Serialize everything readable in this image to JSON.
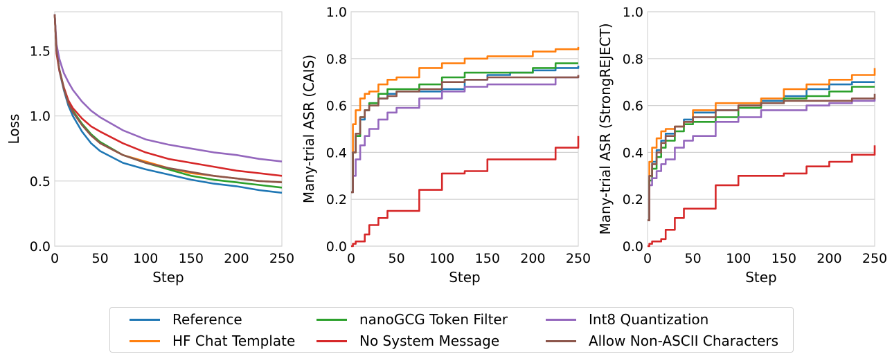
{
  "colors": {
    "Reference": "#1f77b4",
    "HF Chat Template": "#ff7f0e",
    "nanoGCG Token Filter": "#2ca02c",
    "No System Message": "#d62728",
    "Int8 Quantization": "#9467bd",
    "Allow Non-ASCII Characters": "#8c564b"
  },
  "legend": {
    "items": [
      {
        "label": "Reference",
        "color": "#1f77b4"
      },
      {
        "label": "HF Chat Template",
        "color": "#ff7f0e"
      },
      {
        "label": "nanoGCG Token Filter",
        "color": "#2ca02c"
      },
      {
        "label": "No System Message",
        "color": "#d62728"
      },
      {
        "label": "Int8 Quantization",
        "color": "#9467bd"
      },
      {
        "label": "Allow Non-ASCII Characters",
        "color": "#8c564b"
      }
    ]
  },
  "chart_data": [
    {
      "type": "line",
      "xlabel": "Step",
      "ylabel": "Loss",
      "xlim": [
        0,
        250
      ],
      "ylim": [
        0,
        1.8
      ],
      "xticks": [
        0,
        50,
        100,
        150,
        200,
        250
      ],
      "yticks": [
        0.0,
        0.5,
        1.0,
        1.5
      ],
      "ytick_labels": [
        "0.0",
        "0.5",
        "1.0",
        "1.5"
      ],
      "grid": "horizontal",
      "step_lines": false,
      "series": [
        {
          "name": "Reference",
          "x": [
            0,
            2,
            5,
            10,
            15,
            20,
            30,
            40,
            50,
            75,
            100,
            125,
            150,
            175,
            200,
            225,
            250
          ],
          "y": [
            1.78,
            1.5,
            1.35,
            1.2,
            1.08,
            1.0,
            0.88,
            0.79,
            0.73,
            0.64,
            0.59,
            0.55,
            0.51,
            0.48,
            0.46,
            0.43,
            0.41
          ]
        },
        {
          "name": "HF Chat Template",
          "x": [
            0,
            2,
            5,
            10,
            15,
            20,
            30,
            40,
            50,
            75,
            100,
            125,
            150,
            175,
            200,
            225,
            250
          ],
          "y": [
            1.78,
            1.5,
            1.36,
            1.21,
            1.1,
            1.03,
            0.93,
            0.85,
            0.79,
            0.7,
            0.65,
            0.6,
            0.56,
            0.54,
            0.52,
            0.5,
            0.49
          ]
        },
        {
          "name": "nanoGCG Token Filter",
          "x": [
            0,
            2,
            5,
            10,
            15,
            20,
            30,
            40,
            50,
            75,
            100,
            125,
            150,
            175,
            200,
            225,
            250
          ],
          "y": [
            1.78,
            1.5,
            1.36,
            1.22,
            1.11,
            1.04,
            0.94,
            0.86,
            0.8,
            0.7,
            0.64,
            0.59,
            0.54,
            0.51,
            0.49,
            0.47,
            0.45
          ]
        },
        {
          "name": "No System Message",
          "x": [
            0,
            2,
            5,
            10,
            15,
            20,
            30,
            40,
            50,
            75,
            100,
            125,
            150,
            175,
            200,
            225,
            250
          ],
          "y": [
            1.78,
            1.48,
            1.35,
            1.22,
            1.12,
            1.06,
            0.98,
            0.92,
            0.88,
            0.79,
            0.72,
            0.67,
            0.64,
            0.61,
            0.58,
            0.56,
            0.54
          ]
        },
        {
          "name": "Int8 Quantization",
          "x": [
            0,
            2,
            5,
            10,
            15,
            20,
            30,
            40,
            50,
            75,
            100,
            125,
            150,
            175,
            200,
            225,
            250
          ],
          "y": [
            1.78,
            1.55,
            1.44,
            1.33,
            1.26,
            1.2,
            1.11,
            1.04,
            0.99,
            0.89,
            0.82,
            0.78,
            0.75,
            0.72,
            0.7,
            0.67,
            0.65
          ]
        },
        {
          "name": "Allow Non-ASCII Characters",
          "x": [
            0,
            2,
            5,
            10,
            15,
            20,
            30,
            40,
            50,
            75,
            100,
            125,
            150,
            175,
            200,
            225,
            250
          ],
          "y": [
            1.78,
            1.5,
            1.36,
            1.21,
            1.1,
            1.03,
            0.93,
            0.85,
            0.79,
            0.7,
            0.64,
            0.6,
            0.57,
            0.54,
            0.52,
            0.5,
            0.49
          ]
        }
      ]
    },
    {
      "type": "line",
      "xlabel": "Step",
      "ylabel": "Many-trial ASR (CAIS)",
      "xlim": [
        0,
        250
      ],
      "ylim": [
        0,
        1.0
      ],
      "xticks": [
        0,
        50,
        100,
        150,
        200,
        250
      ],
      "yticks": [
        0.0,
        0.2,
        0.4,
        0.6,
        0.8,
        1.0
      ],
      "ytick_labels": [
        "0.0",
        "0.2",
        "0.4",
        "0.6",
        "0.8",
        "1.0"
      ],
      "grid": "horizontal",
      "step_lines": true,
      "series": [
        {
          "name": "Reference",
          "x": [
            0,
            2,
            5,
            10,
            15,
            20,
            30,
            40,
            50,
            75,
            100,
            125,
            150,
            175,
            200,
            225,
            250
          ],
          "y": [
            0.23,
            0.4,
            0.47,
            0.54,
            0.58,
            0.61,
            0.63,
            0.65,
            0.66,
            0.66,
            0.67,
            0.71,
            0.73,
            0.74,
            0.75,
            0.76,
            0.77
          ]
        },
        {
          "name": "HF Chat Template",
          "x": [
            0,
            2,
            5,
            10,
            15,
            20,
            30,
            40,
            50,
            75,
            100,
            125,
            150,
            175,
            200,
            225,
            250
          ],
          "y": [
            0.23,
            0.52,
            0.58,
            0.63,
            0.65,
            0.66,
            0.69,
            0.71,
            0.72,
            0.76,
            0.78,
            0.8,
            0.81,
            0.81,
            0.83,
            0.84,
            0.85
          ]
        },
        {
          "name": "nanoGCG Token Filter",
          "x": [
            0,
            2,
            5,
            10,
            15,
            20,
            30,
            40,
            50,
            75,
            100,
            125,
            150,
            175,
            200,
            225,
            250
          ],
          "y": [
            0.23,
            0.4,
            0.47,
            0.55,
            0.58,
            0.61,
            0.65,
            0.67,
            0.67,
            0.69,
            0.72,
            0.74,
            0.74,
            0.74,
            0.76,
            0.78,
            0.78
          ]
        },
        {
          "name": "No System Message",
          "x": [
            0,
            2,
            5,
            10,
            15,
            20,
            30,
            40,
            50,
            75,
            100,
            125,
            150,
            175,
            200,
            225,
            250
          ],
          "y": [
            0.0,
            0.01,
            0.02,
            0.02,
            0.05,
            0.09,
            0.12,
            0.15,
            0.15,
            0.24,
            0.31,
            0.32,
            0.37,
            0.37,
            0.37,
            0.42,
            0.47
          ]
        },
        {
          "name": "Int8 Quantization",
          "x": [
            0,
            2,
            5,
            10,
            15,
            20,
            30,
            40,
            50,
            75,
            100,
            125,
            150,
            175,
            200,
            225,
            250
          ],
          "y": [
            0.23,
            0.3,
            0.37,
            0.43,
            0.47,
            0.5,
            0.54,
            0.57,
            0.59,
            0.63,
            0.66,
            0.68,
            0.69,
            0.69,
            0.69,
            0.72,
            0.73
          ]
        },
        {
          "name": "Allow Non-ASCII Characters",
          "x": [
            0,
            2,
            5,
            10,
            15,
            20,
            30,
            40,
            50,
            75,
            100,
            125,
            150,
            175,
            200,
            225,
            250
          ],
          "y": [
            0.23,
            0.4,
            0.48,
            0.55,
            0.58,
            0.6,
            0.63,
            0.64,
            0.66,
            0.67,
            0.7,
            0.71,
            0.72,
            0.72,
            0.72,
            0.72,
            0.73
          ]
        }
      ]
    },
    {
      "type": "line",
      "xlabel": "Step",
      "ylabel": "Many-trial ASR (StrongREJECT)",
      "xlim": [
        0,
        250
      ],
      "ylim": [
        0,
        1.0
      ],
      "xticks": [
        0,
        50,
        100,
        150,
        200,
        250
      ],
      "yticks": [
        0.0,
        0.2,
        0.4,
        0.6,
        0.8,
        1.0
      ],
      "ytick_labels": [
        "0.0",
        "0.2",
        "0.4",
        "0.6",
        "0.8",
        "1.0"
      ],
      "grid": "horizontal",
      "step_lines": true,
      "series": [
        {
          "name": "Reference",
          "x": [
            0,
            2,
            5,
            10,
            15,
            20,
            30,
            40,
            50,
            75,
            100,
            125,
            150,
            175,
            200,
            225,
            250
          ],
          "y": [
            0.11,
            0.3,
            0.36,
            0.41,
            0.45,
            0.48,
            0.51,
            0.54,
            0.57,
            0.58,
            0.6,
            0.62,
            0.64,
            0.67,
            0.69,
            0.7,
            0.7
          ]
        },
        {
          "name": "HF Chat Template",
          "x": [
            0,
            2,
            5,
            10,
            15,
            20,
            30,
            40,
            50,
            75,
            100,
            125,
            150,
            175,
            200,
            225,
            250
          ],
          "y": [
            0.11,
            0.36,
            0.42,
            0.46,
            0.49,
            0.5,
            0.51,
            0.53,
            0.58,
            0.61,
            0.61,
            0.63,
            0.67,
            0.69,
            0.71,
            0.73,
            0.76
          ]
        },
        {
          "name": "nanoGCG Token Filter",
          "x": [
            0,
            2,
            5,
            10,
            15,
            20,
            30,
            40,
            50,
            75,
            100,
            125,
            150,
            175,
            200,
            225,
            250
          ],
          "y": [
            0.11,
            0.28,
            0.33,
            0.38,
            0.42,
            0.45,
            0.49,
            0.52,
            0.53,
            0.55,
            0.59,
            0.61,
            0.63,
            0.64,
            0.66,
            0.68,
            0.68
          ]
        },
        {
          "name": "No System Message",
          "x": [
            0,
            2,
            5,
            10,
            15,
            20,
            30,
            40,
            50,
            75,
            100,
            125,
            150,
            175,
            200,
            225,
            250
          ],
          "y": [
            0.0,
            0.01,
            0.02,
            0.02,
            0.03,
            0.07,
            0.12,
            0.16,
            0.16,
            0.26,
            0.3,
            0.3,
            0.31,
            0.34,
            0.36,
            0.39,
            0.43
          ]
        },
        {
          "name": "Int8 Quantization",
          "x": [
            0,
            2,
            5,
            10,
            15,
            20,
            30,
            40,
            50,
            75,
            100,
            125,
            150,
            175,
            200,
            225,
            250
          ],
          "y": [
            0.11,
            0.26,
            0.29,
            0.32,
            0.35,
            0.37,
            0.42,
            0.45,
            0.47,
            0.53,
            0.55,
            0.58,
            0.58,
            0.6,
            0.61,
            0.62,
            0.63
          ]
        },
        {
          "name": "Allow Non-ASCII Characters",
          "x": [
            0,
            2,
            5,
            10,
            15,
            20,
            30,
            40,
            50,
            75,
            100,
            125,
            150,
            175,
            200,
            225,
            250
          ],
          "y": [
            0.11,
            0.3,
            0.35,
            0.4,
            0.44,
            0.47,
            0.51,
            0.53,
            0.55,
            0.58,
            0.6,
            0.61,
            0.62,
            0.62,
            0.62,
            0.63,
            0.65
          ]
        }
      ]
    }
  ]
}
